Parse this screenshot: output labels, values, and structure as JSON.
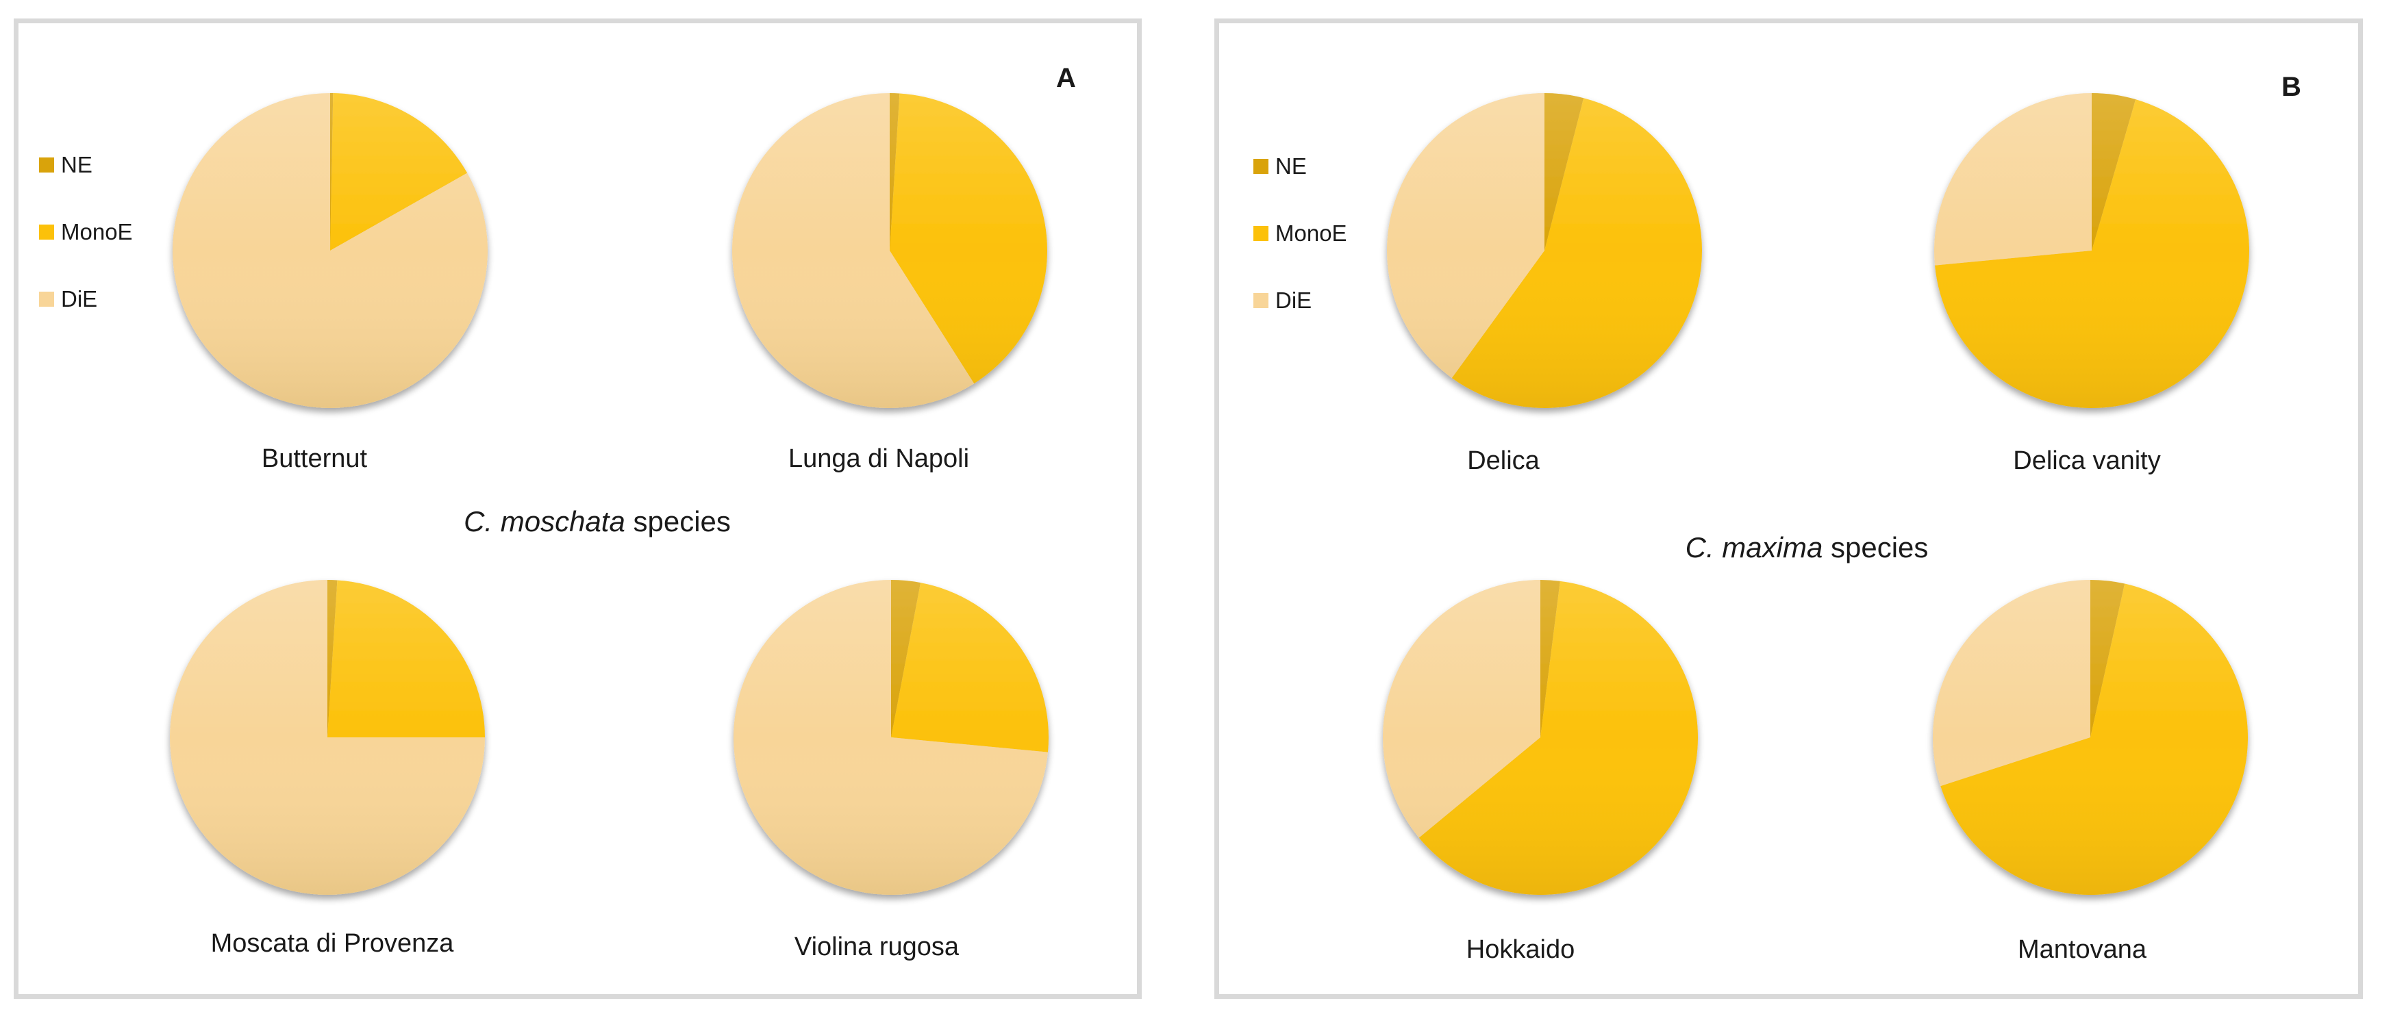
{
  "legend": [
    {
      "label": "NE",
      "color": "#d9a30b"
    },
    {
      "label": "MonoE",
      "color": "#fcc10a"
    },
    {
      "label": "DiE",
      "color": "#f8d598"
    }
  ],
  "panels": [
    {
      "letter": "A",
      "title_italic": "C. moschata",
      "title_rest": " species",
      "charts": [
        {
          "label": "Butternut",
          "values": [
            0.3,
            16.5,
            83.2
          ]
        },
        {
          "label": "Lunga di Napoli",
          "values": [
            1.0,
            40.0,
            59.0
          ]
        },
        {
          "label": "Moscata di Provenza",
          "values": [
            1.0,
            24.0,
            75.0
          ]
        },
        {
          "label": "Violina rugosa",
          "values": [
            3.0,
            23.5,
            73.5
          ]
        }
      ]
    },
    {
      "letter": "B",
      "title_italic": "C. maxima",
      "title_rest": " species",
      "charts": [
        {
          "label": "Delica",
          "values": [
            4.0,
            56.0,
            40.0
          ]
        },
        {
          "label": "Delica vanity",
          "values": [
            4.5,
            69.0,
            26.5
          ]
        },
        {
          "label": "Hokkaido",
          "values": [
            2.0,
            62.0,
            36.0
          ]
        },
        {
          "label": "Mantovana",
          "values": [
            3.5,
            66.5,
            30.0
          ]
        }
      ]
    }
  ],
  "chart_data": [
    {
      "type": "pie",
      "title": "C. moschata species - Butternut",
      "categories": [
        "NE",
        "MonoE",
        "DiE"
      ],
      "values": [
        0.3,
        16.5,
        83.2
      ],
      "units": "%",
      "legend_position": "left"
    },
    {
      "type": "pie",
      "title": "C. moschata species - Lunga di Napoli",
      "categories": [
        "NE",
        "MonoE",
        "DiE"
      ],
      "values": [
        1.0,
        40.0,
        59.0
      ],
      "units": "%"
    },
    {
      "type": "pie",
      "title": "C. moschata species - Moscata di Provenza",
      "categories": [
        "NE",
        "MonoE",
        "DiE"
      ],
      "values": [
        1.0,
        24.0,
        75.0
      ],
      "units": "%"
    },
    {
      "type": "pie",
      "title": "C. moschata species - Violina rugosa",
      "categories": [
        "NE",
        "MonoE",
        "DiE"
      ],
      "values": [
        3.0,
        23.5,
        73.5
      ],
      "units": "%"
    },
    {
      "type": "pie",
      "title": "C. maxima species - Delica",
      "categories": [
        "NE",
        "MonoE",
        "DiE"
      ],
      "values": [
        4.0,
        56.0,
        40.0
      ],
      "units": "%",
      "legend_position": "left"
    },
    {
      "type": "pie",
      "title": "C. maxima species - Delica vanity",
      "categories": [
        "NE",
        "MonoE",
        "DiE"
      ],
      "values": [
        4.5,
        69.0,
        26.5
      ],
      "units": "%"
    },
    {
      "type": "pie",
      "title": "C. maxima species - Hokkaido",
      "categories": [
        "NE",
        "MonoE",
        "DiE"
      ],
      "values": [
        2.0,
        62.0,
        36.0
      ],
      "units": "%"
    },
    {
      "type": "pie",
      "title": "C. maxima species - Mantovana",
      "categories": [
        "NE",
        "MonoE",
        "DiE"
      ],
      "values": [
        3.5,
        66.5,
        30.0
      ],
      "units": "%"
    }
  ]
}
